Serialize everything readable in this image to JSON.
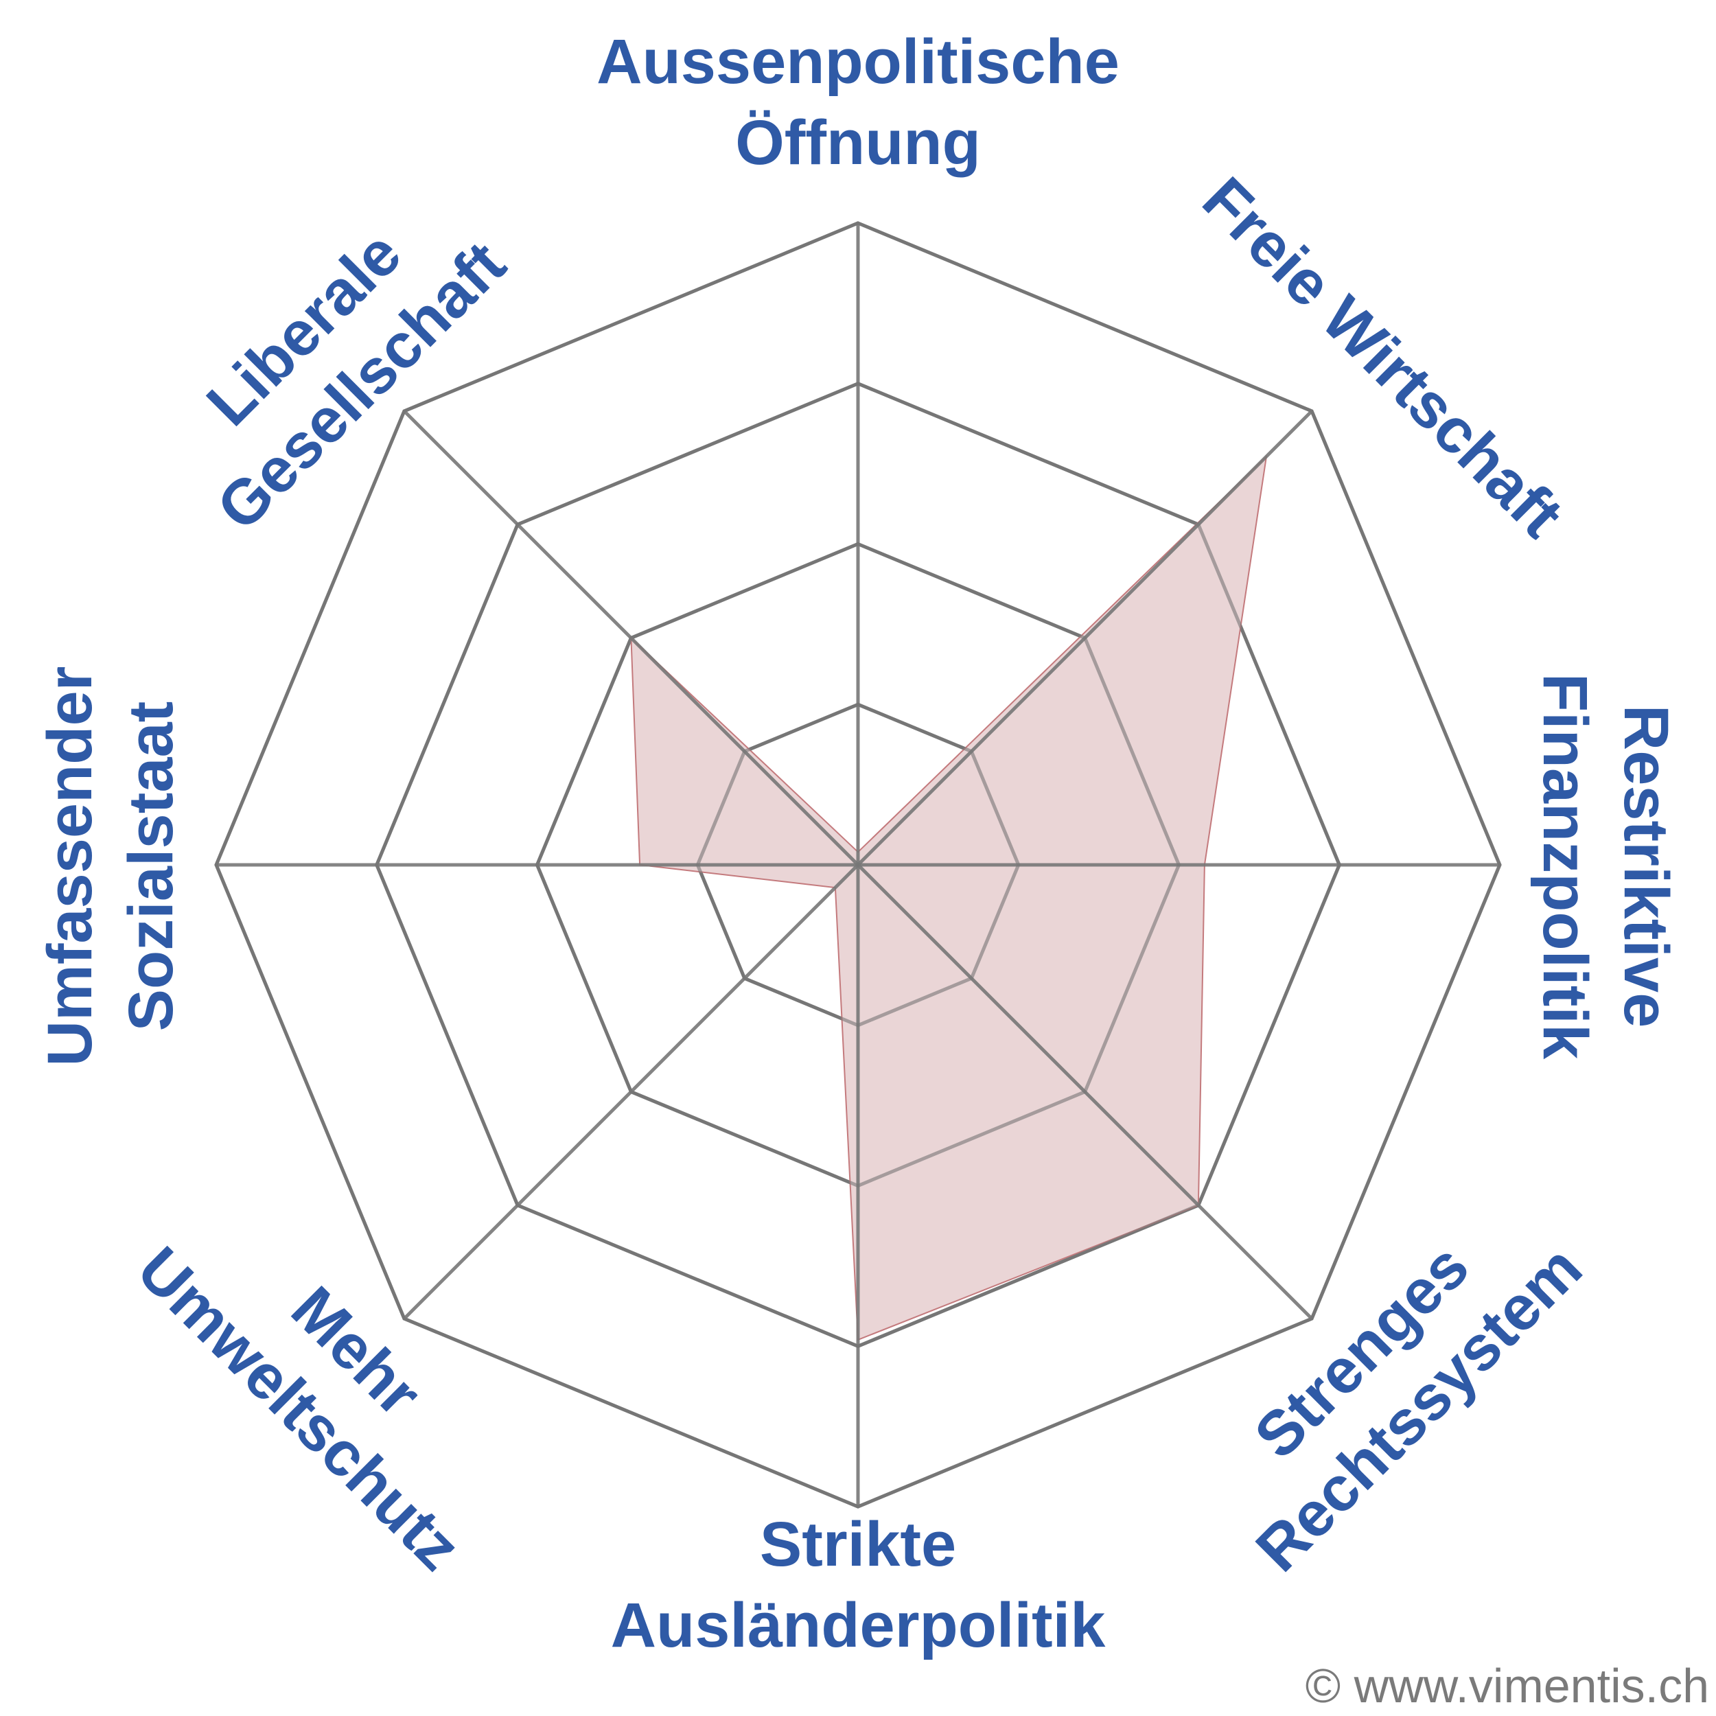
{
  "chart_data": {
    "type": "radar",
    "title": "",
    "axes": [
      {
        "id": "aussenpolitische-oeffnung",
        "lines": [
          "Aussenpolitische",
          "Öffnung"
        ]
      },
      {
        "id": "freie-wirtschaft",
        "lines": [
          "Freie Wirtschaft"
        ]
      },
      {
        "id": "restriktive-finanzpolitik",
        "lines": [
          "Restriktive",
          "Finanzpolitik"
        ]
      },
      {
        "id": "strenges-rechtssystem",
        "lines": [
          "Strenges",
          "Rechtssystem"
        ]
      },
      {
        "id": "strikte-auslaenderpolitik",
        "lines": [
          "Strikte",
          "Ausländerpolitik"
        ]
      },
      {
        "id": "mehr-umweltschutz",
        "lines": [
          "Mehr",
          "Umweltschutz"
        ]
      },
      {
        "id": "umfassender-sozialstaat",
        "lines": [
          "Umfassender",
          "Sozialstaat"
        ]
      },
      {
        "id": "liberale-gesellschaft",
        "lines": [
          "Liberale",
          "Gesellschaft"
        ]
      }
    ],
    "rings": [
      25,
      50,
      75,
      100
    ],
    "range": [
      0,
      100
    ],
    "series": [
      {
        "values": [
          2,
          90,
          54,
          75,
          74,
          5,
          34,
          50
        ],
        "fill": "#e8d0d1",
        "stroke": "#c47a7d"
      }
    ],
    "grid_color": "#777777",
    "label_color": "#2f5aa6"
  },
  "credit": "© www.vimentis.ch"
}
